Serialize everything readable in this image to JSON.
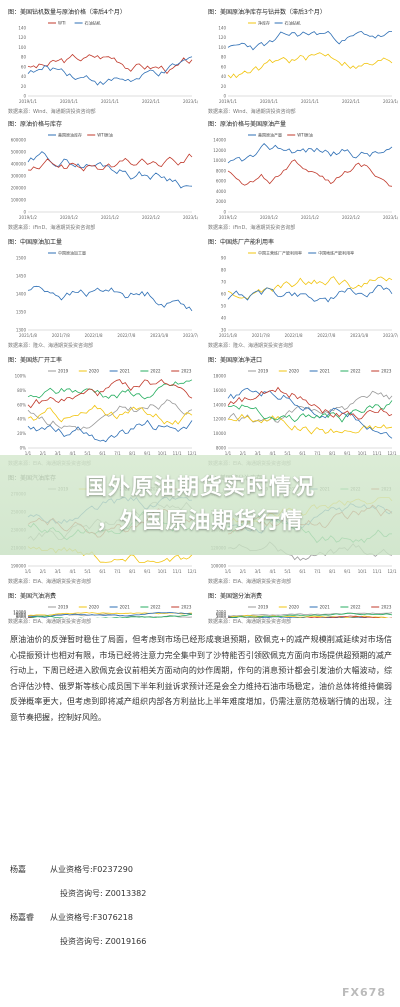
{
  "charts": [
    {
      "title": "图：美国钻机数量与原油价格（滞后4个月）",
      "source": "数据来源：Wind、海通期货投资咨询部",
      "legend": [
        "WTI",
        "石油钻机"
      ],
      "x_ticks": [
        "2019/1/1",
        "2020/1/1",
        "2021/1/1",
        "2022/1/1",
        "2023/1/1"
      ],
      "y_ticks": [
        "140",
        "120",
        "100",
        "80",
        "60",
        "40",
        "20",
        "0"
      ],
      "colors": [
        "#c0392b",
        "#2e6fb5"
      ]
    },
    {
      "title": "图：美国原油净库存与钻井数（滞后3个月）",
      "source": "数据来源：Wind、海通期货投资咨询部",
      "legend": [
        "净库存",
        "石油钻机"
      ],
      "x_ticks": [
        "2019/1/1",
        "2020/1/1",
        "2021/1/1",
        "2022/1/1",
        "2023/1/1"
      ],
      "y_ticks": [
        "140",
        "120",
        "100",
        "80",
        "60",
        "40",
        "20",
        "0"
      ],
      "colors": [
        "#f1c40f",
        "#2e6fb5"
      ]
    },
    {
      "title": "图：原油价格与库存",
      "source": "数据来源：iFinD、海通期货投资咨询部",
      "legend": [
        "美国原油库存",
        "WTI原油"
      ],
      "x_ticks": [
        "2019/1/2",
        "2020/1/2",
        "2021/1/2",
        "2022/1/2",
        "2023/1/2"
      ],
      "y_ticks": [
        "600000",
        "500000",
        "400000",
        "300000",
        "200000",
        "100000",
        "0"
      ],
      "colors": [
        "#2e6fb5",
        "#c0392b"
      ]
    },
    {
      "title": "图：原油价格与美国原油产量",
      "source": "数据来源：iFinD、海通期货投资咨询部",
      "legend": [
        "美国原油产量",
        "WTI原油"
      ],
      "x_ticks": [
        "2019/1/2",
        "2020/1/2",
        "2021/1/2",
        "2022/1/2",
        "2023/1/2"
      ],
      "y_ticks": [
        "14000",
        "12000",
        "10000",
        "8000",
        "6000",
        "4000",
        "2000",
        "0"
      ],
      "colors": [
        "#2e6fb5",
        "#c0392b"
      ]
    },
    {
      "title": "图：中国原油加工量",
      "source": "数据来源：隆众、海通期货投资咨询部",
      "legend": [
        "中国原油加工量"
      ],
      "x_ticks": [
        "2021/1/8",
        "2021/7/8",
        "2022/1/8",
        "2022/7/8",
        "2023/1/8",
        "2023/7/8"
      ],
      "y_ticks": [
        "1500",
        "1450",
        "1400",
        "1350",
        "1300"
      ],
      "colors": [
        "#2e6fb5"
      ]
    },
    {
      "title": "图：中国炼厂产能利用率",
      "source": "数据来源：隆众、海通期货投资咨询部",
      "legend": [
        "中国主营炼厂产能利用率",
        "中国地炼产能利用率"
      ],
      "x_ticks": [
        "2021/1/8",
        "2021/7/8",
        "2022/1/8",
        "2022/7/8",
        "2023/1/8",
        "2023/7/8"
      ],
      "y_ticks": [
        "90",
        "80",
        "70",
        "60",
        "50",
        "40",
        "30"
      ],
      "colors": [
        "#f1c40f",
        "#2e6fb5"
      ]
    },
    {
      "title": "图：美国炼厂开工率",
      "source": "数据来源：EIA、海通期货投资咨询部",
      "legend": [
        "2019",
        "2020",
        "2021",
        "2022",
        "2023"
      ],
      "x_ticks": [
        "1/1",
        "2/1",
        "3/1",
        "4/1",
        "5/1",
        "6/1",
        "7/1",
        "8/1",
        "9/1",
        "10/1",
        "11/1",
        "12/1"
      ],
      "y_ticks": [
        "100%",
        "80%",
        "60%",
        "40%",
        "20%",
        "0%"
      ],
      "colors": [
        "#999999",
        "#f1c40f",
        "#2e6fb5",
        "#27ae60",
        "#c0392b"
      ]
    },
    {
      "title": "图：美国原油净进口",
      "source": "数据来源：EIA、海通期货投资咨询部",
      "legend": [
        "2019",
        "2020",
        "2021",
        "2022",
        "2023"
      ],
      "x_ticks": [
        "1/1",
        "2/1",
        "3/1",
        "4/1",
        "5/1",
        "6/1",
        "7/1",
        "8/1",
        "9/1",
        "10/1",
        "11/1",
        "12/1"
      ],
      "y_ticks": [
        "18000",
        "16000",
        "14000",
        "12000",
        "10000",
        "8000"
      ],
      "colors": [
        "#999999",
        "#f1c40f",
        "#2e6fb5",
        "#27ae60",
        "#c0392b"
      ]
    },
    {
      "title": "图：美国汽油库存",
      "source": "数据来源：EIA、海通期货投资咨询部",
      "legend": [
        "2019",
        "2020",
        "2021",
        "2022",
        "2023"
      ],
      "x_ticks": [
        "1/1",
        "2/1",
        "3/1",
        "4/1",
        "5/1",
        "6/1",
        "7/1",
        "8/1",
        "9/1",
        "10/1",
        "11/1",
        "12/1"
      ],
      "y_ticks": [
        "270000",
        "250000",
        "230000",
        "210000",
        "190000"
      ],
      "colors": [
        "#999999",
        "#f1c40f",
        "#2e6fb5",
        "#27ae60",
        "#c0392b"
      ]
    },
    {
      "title": "图：美国馏分油库存",
      "source": "数据来源：EIA、海通期货投资咨询部",
      "legend": [
        "2019",
        "2020",
        "2021",
        "2022",
        "2023"
      ],
      "x_ticks": [
        "1/1",
        "2/1",
        "3/1",
        "4/1",
        "5/1",
        "6/1",
        "7/1",
        "8/1",
        "9/1",
        "10/1",
        "11/1",
        "12/1"
      ],
      "y_ticks": [
        "180000",
        "160000",
        "140000",
        "120000",
        "100000"
      ],
      "colors": [
        "#999999",
        "#f1c40f",
        "#2e6fb5",
        "#27ae60",
        "#c0392b"
      ]
    },
    {
      "title": "图：美国汽油消费",
      "source": "数据来源：EIA、海通期货投资咨询部",
      "legend": [
        "2019",
        "2020",
        "2021",
        "2022",
        "2023"
      ],
      "x_ticks": [
        "1/1",
        "2/1",
        "3/1",
        "4/1",
        "5/1",
        "6/1",
        "7/1",
        "8/1",
        "9/1",
        "10/1",
        "11/1",
        "12/1"
      ],
      "y_ticks": [
        "12000",
        "10000",
        "8000",
        "6000",
        "4000",
        "2000",
        "0"
      ],
      "colors": [
        "#999999",
        "#f1c40f",
        "#2e6fb5",
        "#27ae60",
        "#c0392b"
      ]
    },
    {
      "title": "图：美国馏分油消费",
      "source": "数据来源：EIA、海通期货投资咨询部",
      "legend": [
        "2019",
        "2020",
        "2021",
        "2022",
        "2023"
      ],
      "x_ticks": [
        "1/1",
        "2/1",
        "3/1",
        "4/1",
        "5/1",
        "6/1",
        "7/1",
        "8/1",
        "9/1",
        "10/1",
        "11/1",
        "12/1"
      ],
      "y_ticks": [
        "7000",
        "6000",
        "5000",
        "4000",
        "3000",
        "2000"
      ],
      "colors": [
        "#999999",
        "#f1c40f",
        "#2e6fb5",
        "#27ae60",
        "#c0392b"
      ]
    }
  ],
  "overlay": {
    "line1": "国外原油期货实时情况",
    "line2": "，外国原油期货行情"
  },
  "body_text": "原油油价的反弹暂时稳住了局面，但考虑到市场已经形成衰退预期，欧佩克+的减产规模削减延续对市场信心提振预计也相对有限，市场已经将注意力完全集中到了沙特能否引领欧佩克方面向市场提供超预期的减产行动上，下周已经进入欧佩克会议前相关方面动向的炒作周期，作句的消息预计都会引发油价大幅波动，综合评估沙特、俄罗斯等核心成员国下半年利益诉求预计还是会全力维持石油市场稳定，油价总体将维持偏弱反弹概率更大，但考虑到即将减产组织内部各方利益比上半年难度增加，仍需注意防范极端行情的出现，注意节奏把握，控制好风险。",
  "analysts": [
    {
      "role": "杨嘉",
      "qualification": "从业资格号:F0237290",
      "investment": "投资咨询号: Z0013382"
    },
    {
      "role": "杨嘉睿",
      "qualification": "从业资格号:F3076218",
      "investment": "投资咨询号: Z0019166"
    }
  ],
  "watermark": "FX678"
}
